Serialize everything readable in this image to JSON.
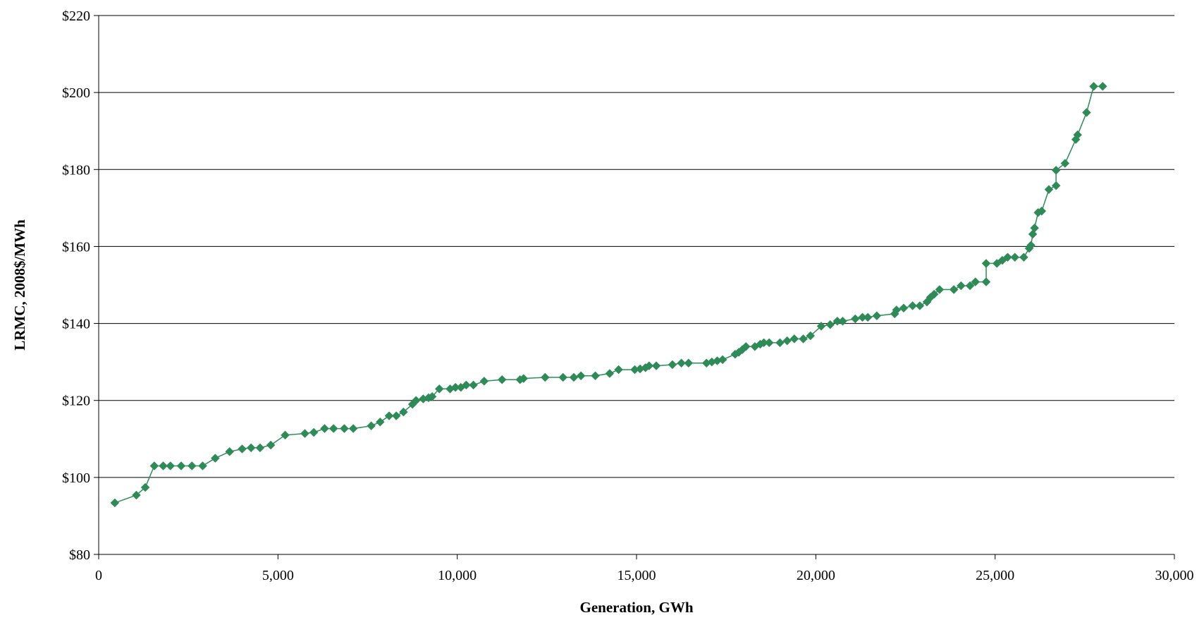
{
  "chart_data": {
    "type": "line",
    "title": "",
    "xlabel": "Generation, GWh",
    "ylabel": "LRMC, 2008$/MWh",
    "xlim": [
      0,
      30000
    ],
    "ylim": [
      80,
      220
    ],
    "x_ticks": [
      0,
      5000,
      10000,
      15000,
      20000,
      25000,
      30000
    ],
    "x_tick_labels": [
      "0",
      "5,000",
      "10,000",
      "15,000",
      "20,000",
      "25,000",
      "30,000"
    ],
    "y_ticks": [
      80,
      100,
      120,
      140,
      160,
      180,
      200,
      220
    ],
    "y_tick_labels": [
      "$80",
      "$100",
      "$120",
      "$140",
      "$160",
      "$180",
      "$200",
      "$220"
    ],
    "grid": "horizontal",
    "legend": "none",
    "marker": "diamond",
    "colors": {
      "series": "#2e8b57",
      "axis": "#000000",
      "grid": "#000000"
    },
    "series": [
      {
        "points": [
          [
            450,
            93.4
          ],
          [
            1050,
            95.4
          ],
          [
            1300,
            97.4
          ],
          [
            1550,
            103
          ],
          [
            1800,
            103
          ],
          [
            2000,
            103
          ],
          [
            2300,
            103
          ],
          [
            2600,
            103
          ],
          [
            2900,
            103
          ],
          [
            3250,
            105
          ],
          [
            3650,
            106.7
          ],
          [
            4000,
            107.4
          ],
          [
            4250,
            107.7
          ],
          [
            4500,
            107.7
          ],
          [
            4800,
            108.4
          ],
          [
            5200,
            111
          ],
          [
            5750,
            111.4
          ],
          [
            6000,
            111.7
          ],
          [
            6300,
            112.7
          ],
          [
            6550,
            112.7
          ],
          [
            6850,
            112.7
          ],
          [
            7100,
            112.7
          ],
          [
            7600,
            113.4
          ],
          [
            7850,
            114.4
          ],
          [
            8100,
            116
          ],
          [
            8300,
            116
          ],
          [
            8500,
            117
          ],
          [
            8750,
            119
          ],
          [
            8850,
            120
          ],
          [
            9050,
            120.4
          ],
          [
            9200,
            120.7
          ],
          [
            9300,
            121
          ],
          [
            9500,
            123
          ],
          [
            9800,
            123
          ],
          [
            9950,
            123.4
          ],
          [
            10100,
            123.4
          ],
          [
            10250,
            124
          ],
          [
            10450,
            124
          ],
          [
            10750,
            125
          ],
          [
            11250,
            125.4
          ],
          [
            11750,
            125.4
          ],
          [
            11850,
            125.7
          ],
          [
            12450,
            126
          ],
          [
            12950,
            126
          ],
          [
            13250,
            126
          ],
          [
            13450,
            126.4
          ],
          [
            13850,
            126.4
          ],
          [
            14250,
            127
          ],
          [
            14500,
            128
          ],
          [
            14950,
            128
          ],
          [
            15100,
            128.2
          ],
          [
            15250,
            128.5
          ],
          [
            15350,
            129
          ],
          [
            15550,
            129
          ],
          [
            16000,
            129.3
          ],
          [
            16250,
            129.7
          ],
          [
            16450,
            129.7
          ],
          [
            16950,
            129.7
          ],
          [
            17100,
            130
          ],
          [
            17250,
            130.3
          ],
          [
            17400,
            130.6
          ],
          [
            17750,
            132
          ],
          [
            17850,
            132.5
          ],
          [
            17950,
            133.2
          ],
          [
            18050,
            134
          ],
          [
            18300,
            134
          ],
          [
            18450,
            134.6
          ],
          [
            18550,
            135
          ],
          [
            18700,
            135
          ],
          [
            19000,
            135
          ],
          [
            19200,
            135.5
          ],
          [
            19400,
            136
          ],
          [
            19650,
            136
          ],
          [
            19850,
            136.8
          ],
          [
            20150,
            139.3
          ],
          [
            20400,
            139.7
          ],
          [
            20600,
            140.6
          ],
          [
            20750,
            140.6
          ],
          [
            21100,
            141.2
          ],
          [
            21300,
            141.6
          ],
          [
            21450,
            141.6
          ],
          [
            21700,
            142
          ],
          [
            22200,
            142.5
          ],
          [
            22250,
            143.5
          ],
          [
            22450,
            144
          ],
          [
            22700,
            144.6
          ],
          [
            22900,
            144.6
          ],
          [
            23100,
            145.6
          ],
          [
            23200,
            146.8
          ],
          [
            23300,
            147.6
          ],
          [
            23450,
            148.8
          ],
          [
            23850,
            148.8
          ],
          [
            24050,
            149.8
          ],
          [
            24300,
            149.8
          ],
          [
            24450,
            150.8
          ],
          [
            24750,
            150.8
          ],
          [
            24750,
            155.6
          ],
          [
            25050,
            155.6
          ],
          [
            25200,
            156.4
          ],
          [
            25350,
            157.2
          ],
          [
            25550,
            157.2
          ],
          [
            25800,
            157.2
          ],
          [
            25950,
            159.5
          ],
          [
            26000,
            160.3
          ],
          [
            26050,
            163.2
          ],
          [
            26100,
            164.8
          ],
          [
            26200,
            168.8
          ],
          [
            26300,
            169.2
          ],
          [
            26500,
            174.8
          ],
          [
            26700,
            175.8
          ],
          [
            26700,
            179.8
          ],
          [
            26950,
            181.6
          ],
          [
            27250,
            187.8
          ],
          [
            27300,
            189
          ],
          [
            27550,
            194.8
          ],
          [
            27750,
            201.6
          ],
          [
            28000,
            201.6
          ]
        ]
      }
    ]
  }
}
